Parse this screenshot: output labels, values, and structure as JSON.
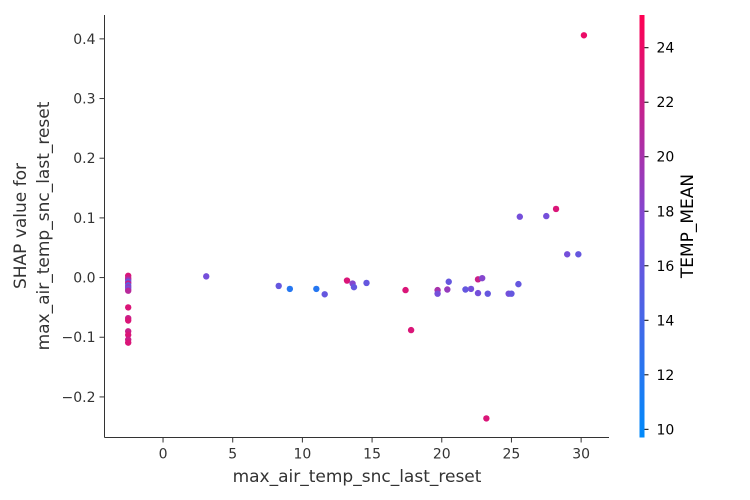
{
  "chart_data": {
    "type": "scatter",
    "title": "",
    "xlabel": "max_air_temp_snc_last_reset",
    "ylabel_lines": [
      "SHAP value for",
      "max_air_temp_snc_last_reset"
    ],
    "xlim": [
      -4.2,
      32
    ],
    "ylim": [
      -0.268,
      0.44
    ],
    "xticks": [
      0,
      5,
      10,
      15,
      20,
      25,
      30
    ],
    "xtick_labels": [
      "0",
      "5",
      "10",
      "15",
      "20",
      "25",
      "30"
    ],
    "yticks": [
      -0.2,
      -0.1,
      0.0,
      0.1,
      0.2,
      0.3,
      0.4
    ],
    "ytick_labels": [
      "−0.2",
      "−0.1",
      "0.0",
      "0.1",
      "0.2",
      "0.3",
      "0.4"
    ],
    "grid": false,
    "color_scale": {
      "label": "TEMP_MEAN",
      "min": 9.7,
      "max": 25.2,
      "ticks": [
        10,
        12,
        14,
        16,
        18,
        20,
        22,
        24
      ],
      "tick_labels": [
        "10",
        "12",
        "14",
        "16",
        "18",
        "20",
        "22",
        "24"
      ],
      "colormap_low": "#008afb",
      "colormap_mid": "#7c4bd8",
      "colormap_high": "#ff0052"
    },
    "points": [
      {
        "x": -2.5,
        "y": 0.003,
        "c": 23
      },
      {
        "x": -2.5,
        "y": -0.001,
        "c": 22
      },
      {
        "x": -2.5,
        "y": -0.004,
        "c": 20
      },
      {
        "x": -2.5,
        "y": -0.007,
        "c": 16
      },
      {
        "x": -2.5,
        "y": -0.01,
        "c": 22
      },
      {
        "x": -2.5,
        "y": -0.013,
        "c": 15
      },
      {
        "x": -2.5,
        "y": -0.016,
        "c": 19
      },
      {
        "x": -2.5,
        "y": -0.019,
        "c": 17
      },
      {
        "x": -2.5,
        "y": -0.022,
        "c": 21
      },
      {
        "x": -2.5,
        "y": -0.05,
        "c": 23
      },
      {
        "x": -2.5,
        "y": -0.068,
        "c": 22
      },
      {
        "x": -2.5,
        "y": -0.072,
        "c": 23
      },
      {
        "x": -2.5,
        "y": -0.09,
        "c": 22
      },
      {
        "x": -2.5,
        "y": -0.096,
        "c": 23
      },
      {
        "x": -2.5,
        "y": -0.104,
        "c": 22
      },
      {
        "x": -2.5,
        "y": -0.109,
        "c": 23
      },
      {
        "x": 3.1,
        "y": 0.002,
        "c": 17
      },
      {
        "x": 8.3,
        "y": -0.014,
        "c": 16
      },
      {
        "x": 9.1,
        "y": -0.019,
        "c": 12
      },
      {
        "x": 11.0,
        "y": -0.019,
        "c": 12
      },
      {
        "x": 11.6,
        "y": -0.028,
        "c": 16
      },
      {
        "x": 13.2,
        "y": -0.005,
        "c": 23
      },
      {
        "x": 13.6,
        "y": -0.01,
        "c": 18
      },
      {
        "x": 13.7,
        "y": -0.016,
        "c": 16
      },
      {
        "x": 14.6,
        "y": -0.009,
        "c": 16
      },
      {
        "x": 17.4,
        "y": -0.021,
        "c": 23
      },
      {
        "x": 17.8,
        "y": -0.088,
        "c": 23
      },
      {
        "x": 19.7,
        "y": -0.021,
        "c": 20
      },
      {
        "x": 19.7,
        "y": -0.027,
        "c": 17
      },
      {
        "x": 20.4,
        "y": -0.02,
        "c": 19
      },
      {
        "x": 20.5,
        "y": -0.007,
        "c": 16
      },
      {
        "x": 21.7,
        "y": -0.02,
        "c": 16
      },
      {
        "x": 22.1,
        "y": -0.019,
        "c": 17
      },
      {
        "x": 22.6,
        "y": -0.003,
        "c": 22
      },
      {
        "x": 22.6,
        "y": -0.026,
        "c": 17
      },
      {
        "x": 22.9,
        "y": -0.001,
        "c": 18
      },
      {
        "x": 23.2,
        "y": -0.236,
        "c": 23
      },
      {
        "x": 23.3,
        "y": -0.027,
        "c": 16
      },
      {
        "x": 24.8,
        "y": -0.027,
        "c": 17
      },
      {
        "x": 25.0,
        "y": -0.027,
        "c": 16
      },
      {
        "x": 25.5,
        "y": -0.011,
        "c": 16
      },
      {
        "x": 25.6,
        "y": 0.102,
        "c": 17
      },
      {
        "x": 27.5,
        "y": 0.103,
        "c": 17
      },
      {
        "x": 28.2,
        "y": 0.115,
        "c": 23
      },
      {
        "x": 29.0,
        "y": 0.039,
        "c": 17
      },
      {
        "x": 29.8,
        "y": 0.039,
        "c": 16
      },
      {
        "x": 30.2,
        "y": 0.406,
        "c": 24
      }
    ]
  }
}
